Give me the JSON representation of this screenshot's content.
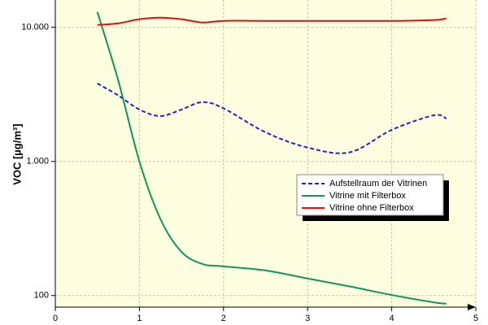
{
  "chart_data": {
    "type": "line",
    "y_label": "VOC [µg/m³]",
    "x": [
      0.5,
      0.75,
      1,
      1.25,
      1.5,
      1.75,
      2,
      2.5,
      3,
      3.5,
      4,
      4.5,
      4.65
    ],
    "series": [
      {
        "name": "Aufstellraum der Vitrinen",
        "color": "#1f1fd6",
        "dash": true,
        "values": [
          3820,
          3100,
          2440,
          2180,
          2440,
          2770,
          2490,
          1650,
          1270,
          1170,
          1720,
          2210,
          2090
        ]
      },
      {
        "name": "Vitrine mit Filterbox",
        "color": "#10955a",
        "dash": false,
        "values": [
          13030,
          3981,
          1000,
          372,
          212,
          172,
          165,
          154,
          134,
          117,
          101,
          89,
          87
        ]
      },
      {
        "name": "Vitrine ohne Filterbox",
        "color": "#e01010",
        "dash": false,
        "values": [
          10420,
          10720,
          11500,
          11820,
          11500,
          10870,
          11180,
          11180,
          11180,
          11180,
          11180,
          11340,
          11660
        ]
      }
    ],
    "xlim": [
      0,
      5
    ],
    "xticks": [
      0,
      1,
      2,
      3,
      4,
      5
    ],
    "ylim": [
      82,
      16000
    ],
    "log_y": true,
    "yticks": [
      {
        "value": 100,
        "label": "100"
      },
      {
        "value": 1000,
        "label": "1.000"
      },
      {
        "value": 10000,
        "label": "10.000"
      }
    ],
    "grid": true,
    "background": "#fdfde0"
  }
}
